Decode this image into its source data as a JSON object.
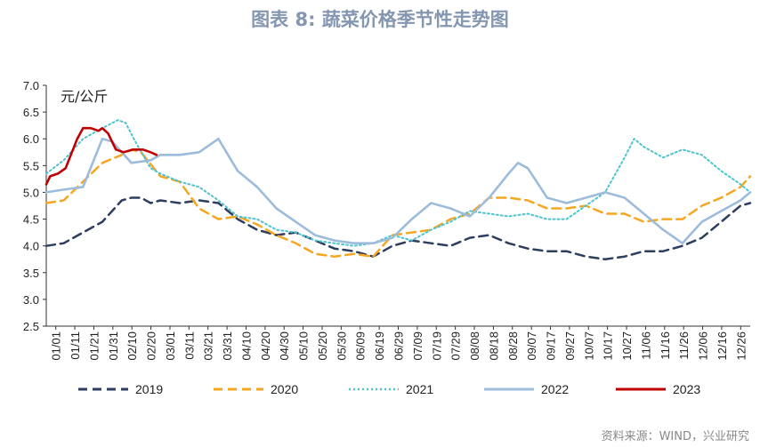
{
  "chart_data": {
    "type": "line",
    "title": "图表 8:  蔬菜价格季节性走势图",
    "unit_label": "元/公斤",
    "source": "资料来源：WIND，兴业研究",
    "ylim": [
      2.5,
      7.0
    ],
    "y_ticks": [
      "7.0",
      "6.5",
      "6.0",
      "5.5",
      "5.0",
      "4.5",
      "4.0",
      "3.5",
      "3.0",
      "2.5"
    ],
    "x_ticks": [
      "01/01",
      "01/11",
      "01/21",
      "01/31",
      "02/10",
      "02/20",
      "03/01",
      "03/11",
      "03/21",
      "03/31",
      "04/10",
      "04/20",
      "04/30",
      "05/10",
      "05/20",
      "05/30",
      "06/09",
      "06/19",
      "06/29",
      "07/09",
      "07/19",
      "07/29",
      "08/08",
      "08/18",
      "08/28",
      "09/07",
      "09/17",
      "09/27",
      "10/07",
      "10/17",
      "10/27",
      "11/06",
      "11/16",
      "11/26",
      "12/06",
      "12/16",
      "12/26"
    ],
    "x_unit": "day_of_year",
    "grid": false,
    "legend_position": "bottom",
    "series": [
      {
        "name": "2019",
        "color": "#2d3e5e",
        "style": "dashed",
        "x": [
          1,
          10,
          20,
          30,
          40,
          45,
          50,
          55,
          60,
          70,
          80,
          90,
          100,
          110,
          120,
          130,
          140,
          150,
          160,
          170,
          180,
          190,
          200,
          210,
          220,
          230,
          240,
          250,
          260,
          270,
          280,
          290,
          300,
          310,
          320,
          330,
          340,
          350,
          360,
          365
        ],
        "y": [
          4.0,
          4.05,
          4.25,
          4.45,
          4.85,
          4.9,
          4.9,
          4.8,
          4.85,
          4.8,
          4.85,
          4.8,
          4.5,
          4.3,
          4.2,
          4.25,
          4.1,
          3.95,
          3.9,
          3.8,
          4.0,
          4.1,
          4.05,
          4.0,
          4.15,
          4.2,
          4.05,
          3.95,
          3.9,
          3.9,
          3.8,
          3.75,
          3.8,
          3.9,
          3.9,
          4.0,
          4.15,
          4.45,
          4.75,
          4.8
        ]
      },
      {
        "name": "2020",
        "color": "#f5a623",
        "style": "dashed",
        "x": [
          1,
          10,
          20,
          30,
          40,
          45,
          50,
          60,
          70,
          80,
          90,
          100,
          110,
          120,
          130,
          140,
          150,
          160,
          170,
          180,
          190,
          200,
          210,
          220,
          230,
          240,
          250,
          260,
          270,
          280,
          290,
          300,
          310,
          320,
          330,
          340,
          350,
          360,
          365
        ],
        "y": [
          4.8,
          4.85,
          5.2,
          5.55,
          5.7,
          5.8,
          5.75,
          5.3,
          5.2,
          4.7,
          4.5,
          4.55,
          4.4,
          4.2,
          4.05,
          3.85,
          3.8,
          3.85,
          3.8,
          4.2,
          4.25,
          4.3,
          4.5,
          4.6,
          4.9,
          4.9,
          4.85,
          4.7,
          4.7,
          4.75,
          4.6,
          4.6,
          4.45,
          4.5,
          4.5,
          4.75,
          4.9,
          5.1,
          5.3
        ]
      },
      {
        "name": "2021",
        "color": "#4fc3d0",
        "style": "dotted",
        "x": [
          1,
          10,
          20,
          30,
          38,
          42,
          47,
          55,
          60,
          70,
          80,
          90,
          100,
          110,
          120,
          130,
          140,
          150,
          160,
          170,
          180,
          190,
          200,
          210,
          220,
          230,
          240,
          250,
          260,
          270,
          280,
          290,
          300,
          305,
          310,
          320,
          330,
          340,
          350,
          360,
          365
        ],
        "y": [
          5.35,
          5.6,
          6.0,
          6.2,
          6.35,
          6.3,
          5.95,
          5.45,
          5.35,
          5.2,
          5.1,
          4.85,
          4.55,
          4.5,
          4.3,
          4.25,
          4.1,
          4.05,
          4.0,
          4.05,
          4.2,
          4.1,
          4.3,
          4.45,
          4.65,
          4.6,
          4.55,
          4.6,
          4.5,
          4.5,
          4.75,
          5.0,
          5.65,
          6.0,
          5.85,
          5.65,
          5.8,
          5.7,
          5.4,
          5.15,
          5.0
        ]
      },
      {
        "name": "2022",
        "color": "#9dbcdb",
        "style": "solid",
        "x": [
          1,
          10,
          20,
          30,
          35,
          40,
          45,
          55,
          60,
          70,
          80,
          90,
          100,
          110,
          120,
          130,
          140,
          150,
          160,
          170,
          180,
          190,
          200,
          210,
          220,
          230,
          240,
          245,
          250,
          260,
          270,
          280,
          290,
          300,
          310,
          320,
          330,
          340,
          350,
          360,
          365
        ],
        "y": [
          5.0,
          5.05,
          5.1,
          6.0,
          5.95,
          5.75,
          5.55,
          5.6,
          5.7,
          5.7,
          5.75,
          6.0,
          5.4,
          5.1,
          4.7,
          4.45,
          4.2,
          4.1,
          4.05,
          4.05,
          4.15,
          4.5,
          4.8,
          4.7,
          4.55,
          4.9,
          5.35,
          5.55,
          5.45,
          4.9,
          4.8,
          4.9,
          5.0,
          4.9,
          4.6,
          4.3,
          4.05,
          4.45,
          4.65,
          4.85,
          5.0
        ]
      },
      {
        "name": "2023",
        "color": "#c00000",
        "style": "solid",
        "x": [
          1,
          3,
          7,
          11,
          17,
          20,
          24,
          28,
          30,
          33,
          37,
          41,
          46,
          51,
          55,
          58
        ],
        "y": [
          5.15,
          5.3,
          5.35,
          5.45,
          6.0,
          6.2,
          6.2,
          6.15,
          6.2,
          6.1,
          5.8,
          5.75,
          5.8,
          5.8,
          5.75,
          5.7
        ]
      }
    ]
  }
}
